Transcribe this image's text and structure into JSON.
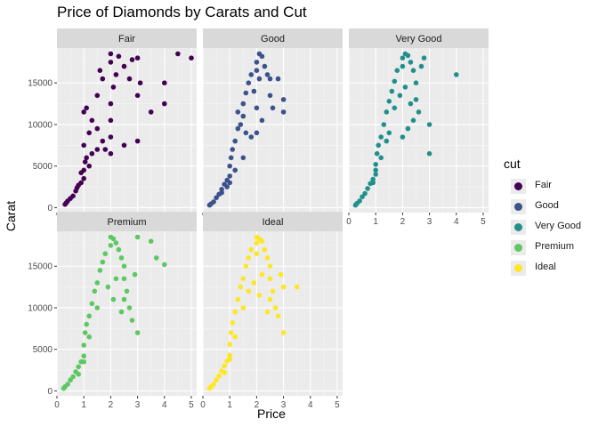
{
  "chart_data": {
    "type": "scatter",
    "title": "Price of Diamonds by Carats and Cut",
    "xlabel": "Price",
    "ylabel": "Carat",
    "xlim": [
      0,
      5.2
    ],
    "ylim": [
      -600,
      19200
    ],
    "x_ticks": [
      "0",
      "1",
      "2",
      "3",
      "4",
      "5"
    ],
    "x_tick_values": [
      0,
      1,
      2,
      3,
      4,
      5
    ],
    "y_ticks": [
      "0",
      "5000",
      "10000",
      "15000"
    ],
    "y_tick_values": [
      0,
      5000,
      10000,
      15000
    ],
    "grid": true,
    "facet_by": "cut",
    "legend_title": "cut",
    "legend_position": "right",
    "series": [
      {
        "name": "Fair",
        "color": "#440154",
        "points": [
          [
            0.3,
            400
          ],
          [
            0.35,
            600
          ],
          [
            0.4,
            800
          ],
          [
            0.5,
            1100
          ],
          [
            0.6,
            1400
          ],
          [
            0.7,
            2000
          ],
          [
            0.75,
            2400
          ],
          [
            0.8,
            2700
          ],
          [
            0.9,
            3000
          ],
          [
            1.0,
            3500
          ],
          [
            1.0,
            4500
          ],
          [
            1.05,
            5500
          ],
          [
            1.1,
            6000
          ],
          [
            1.2,
            5000
          ],
          [
            1.3,
            6500
          ],
          [
            1.5,
            7000
          ],
          [
            1.7,
            8000
          ],
          [
            1.5,
            9500
          ],
          [
            1.0,
            7500
          ],
          [
            0.9,
            4200
          ],
          [
            1.8,
            7000
          ],
          [
            2.0,
            8500
          ],
          [
            2.0,
            10500
          ],
          [
            2.0,
            12500
          ],
          [
            2.1,
            14500
          ],
          [
            2.2,
            16000
          ],
          [
            2.0,
            17500
          ],
          [
            2.0,
            18500
          ],
          [
            2.3,
            18200
          ],
          [
            2.5,
            17000
          ],
          [
            2.7,
            15500
          ],
          [
            2.8,
            17800
          ],
          [
            3.0,
            18000
          ],
          [
            3.0,
            13500
          ],
          [
            3.1,
            15000
          ],
          [
            3.5,
            11500
          ],
          [
            4.0,
            15000
          ],
          [
            4.5,
            18500
          ],
          [
            5.0,
            18000
          ],
          [
            1.2,
            9000
          ],
          [
            1.3,
            10500
          ],
          [
            1.1,
            12000
          ],
          [
            1.0,
            11500
          ],
          [
            1.7,
            15500
          ],
          [
            1.6,
            16500
          ],
          [
            2.0,
            6500
          ],
          [
            2.5,
            7500
          ],
          [
            3.0,
            8000
          ],
          [
            4.0,
            12500
          ],
          [
            1.5,
            13500
          ]
        ]
      },
      {
        "name": "Good",
        "color": "#3B528B",
        "points": [
          [
            0.25,
            300
          ],
          [
            0.3,
            450
          ],
          [
            0.4,
            700
          ],
          [
            0.5,
            1200
          ],
          [
            0.6,
            1600
          ],
          [
            0.7,
            2200
          ],
          [
            0.8,
            2800
          ],
          [
            0.9,
            3300
          ],
          [
            1.0,
            3800
          ],
          [
            1.0,
            5000
          ],
          [
            1.05,
            6000
          ],
          [
            1.1,
            7000
          ],
          [
            1.2,
            8000
          ],
          [
            1.3,
            9500
          ],
          [
            1.5,
            11000
          ],
          [
            1.5,
            12500
          ],
          [
            1.6,
            13800
          ],
          [
            1.7,
            15000
          ],
          [
            1.8,
            16000
          ],
          [
            2.0,
            16500
          ],
          [
            2.0,
            17500
          ],
          [
            2.1,
            18500
          ],
          [
            2.2,
            18200
          ],
          [
            2.3,
            17000
          ],
          [
            2.4,
            16000
          ],
          [
            2.5,
            15500
          ],
          [
            2.5,
            13500
          ],
          [
            2.6,
            12000
          ],
          [
            2.8,
            15500
          ],
          [
            3.0,
            13000
          ],
          [
            3.0,
            11500
          ],
          [
            2.0,
            9000
          ],
          [
            1.8,
            8500
          ],
          [
            1.5,
            6000
          ],
          [
            1.2,
            4500
          ],
          [
            1.0,
            3000
          ],
          [
            0.9,
            2500
          ],
          [
            0.7,
            1800
          ],
          [
            2.2,
            10500
          ],
          [
            2.0,
            12000
          ],
          [
            1.4,
            10000
          ],
          [
            1.3,
            11500
          ],
          [
            1.9,
            14000
          ],
          [
            2.1,
            15500
          ],
          [
            1.6,
            9000
          ]
        ]
      },
      {
        "name": "Very Good",
        "color": "#21908C",
        "points": [
          [
            0.25,
            300
          ],
          [
            0.3,
            500
          ],
          [
            0.4,
            800
          ],
          [
            0.5,
            1300
          ],
          [
            0.6,
            1700
          ],
          [
            0.7,
            2300
          ],
          [
            0.8,
            2900
          ],
          [
            0.9,
            3400
          ],
          [
            1.0,
            4000
          ],
          [
            1.0,
            5200
          ],
          [
            1.05,
            6500
          ],
          [
            1.1,
            7500
          ],
          [
            1.2,
            8500
          ],
          [
            1.3,
            10000
          ],
          [
            1.4,
            11500
          ],
          [
            1.5,
            12800
          ],
          [
            1.6,
            14000
          ],
          [
            1.7,
            15200
          ],
          [
            1.8,
            16500
          ],
          [
            2.0,
            17000
          ],
          [
            2.0,
            18000
          ],
          [
            2.1,
            18500
          ],
          [
            2.2,
            18300
          ],
          [
            2.3,
            17500
          ],
          [
            2.4,
            16500
          ],
          [
            2.5,
            15000
          ],
          [
            2.5,
            13000
          ],
          [
            2.6,
            11500
          ],
          [
            2.4,
            10500
          ],
          [
            2.2,
            9500
          ],
          [
            2.0,
            8500
          ],
          [
            3.0,
            6500
          ],
          [
            4.0,
            16000
          ],
          [
            3.0,
            10000
          ],
          [
            2.8,
            18000
          ],
          [
            2.7,
            17000
          ],
          [
            1.5,
            9000
          ],
          [
            1.2,
            6000
          ],
          [
            1.0,
            4500
          ],
          [
            0.9,
            3000
          ],
          [
            1.9,
            13500
          ],
          [
            2.1,
            14500
          ],
          [
            1.7,
            12000
          ],
          [
            1.4,
            8000
          ],
          [
            2.3,
            12500
          ]
        ]
      },
      {
        "name": "Premium",
        "color": "#5DC863",
        "points": [
          [
            0.25,
            300
          ],
          [
            0.3,
            500
          ],
          [
            0.4,
            800
          ],
          [
            0.5,
            1300
          ],
          [
            0.6,
            1700
          ],
          [
            0.7,
            2300
          ],
          [
            0.8,
            2900
          ],
          [
            0.9,
            3500
          ],
          [
            1.0,
            4200
          ],
          [
            1.0,
            5500
          ],
          [
            1.05,
            7000
          ],
          [
            1.1,
            8000
          ],
          [
            1.2,
            9000
          ],
          [
            1.3,
            10500
          ],
          [
            1.4,
            12000
          ],
          [
            1.5,
            13000
          ],
          [
            1.6,
            14500
          ],
          [
            1.7,
            15500
          ],
          [
            1.8,
            16500
          ],
          [
            2.0,
            17500
          ],
          [
            2.0,
            18500
          ],
          [
            2.1,
            18300
          ],
          [
            2.2,
            17800
          ],
          [
            2.3,
            17000
          ],
          [
            2.4,
            16000
          ],
          [
            2.5,
            15000
          ],
          [
            2.5,
            13500
          ],
          [
            2.6,
            12000
          ],
          [
            2.5,
            11000
          ],
          [
            2.7,
            10000
          ],
          [
            2.8,
            8500
          ],
          [
            3.0,
            7000
          ],
          [
            3.0,
            18500
          ],
          [
            3.5,
            18000
          ],
          [
            3.7,
            16000
          ],
          [
            4.0,
            15200
          ],
          [
            2.9,
            14000
          ],
          [
            1.5,
            10000
          ],
          [
            1.2,
            6500
          ],
          [
            1.0,
            3500
          ],
          [
            0.8,
            2000
          ],
          [
            1.9,
            12500
          ],
          [
            2.2,
            13500
          ],
          [
            2.4,
            9500
          ],
          [
            2.1,
            11000
          ]
        ]
      },
      {
        "name": "Ideal",
        "color": "#FDE725",
        "points": [
          [
            0.25,
            300
          ],
          [
            0.3,
            500
          ],
          [
            0.4,
            800
          ],
          [
            0.5,
            1300
          ],
          [
            0.6,
            1800
          ],
          [
            0.7,
            2400
          ],
          [
            0.8,
            3000
          ],
          [
            0.9,
            3600
          ],
          [
            1.0,
            4300
          ],
          [
            1.0,
            5600
          ],
          [
            1.05,
            7000
          ],
          [
            1.1,
            8200
          ],
          [
            1.2,
            9500
          ],
          [
            1.3,
            11000
          ],
          [
            1.4,
            12500
          ],
          [
            1.5,
            13500
          ],
          [
            1.6,
            15000
          ],
          [
            1.7,
            16000
          ],
          [
            1.8,
            17000
          ],
          [
            2.0,
            17800
          ],
          [
            2.0,
            18500
          ],
          [
            2.1,
            18300
          ],
          [
            2.2,
            18000
          ],
          [
            2.3,
            17000
          ],
          [
            2.4,
            16000
          ],
          [
            2.5,
            15000
          ],
          [
            2.5,
            13500
          ],
          [
            2.6,
            12000
          ],
          [
            2.5,
            11000
          ],
          [
            2.7,
            10000
          ],
          [
            2.8,
            9000
          ],
          [
            3.0,
            7000
          ],
          [
            3.0,
            12500
          ],
          [
            3.5,
            12500
          ],
          [
            2.9,
            14000
          ],
          [
            1.5,
            10000
          ],
          [
            1.2,
            6500
          ],
          [
            1.0,
            3800
          ],
          [
            0.8,
            2200
          ],
          [
            1.9,
            13000
          ],
          [
            2.2,
            14000
          ],
          [
            2.1,
            11500
          ],
          [
            2.4,
            9500
          ],
          [
            2.0,
            16500
          ],
          [
            1.7,
            12000
          ]
        ]
      }
    ]
  }
}
